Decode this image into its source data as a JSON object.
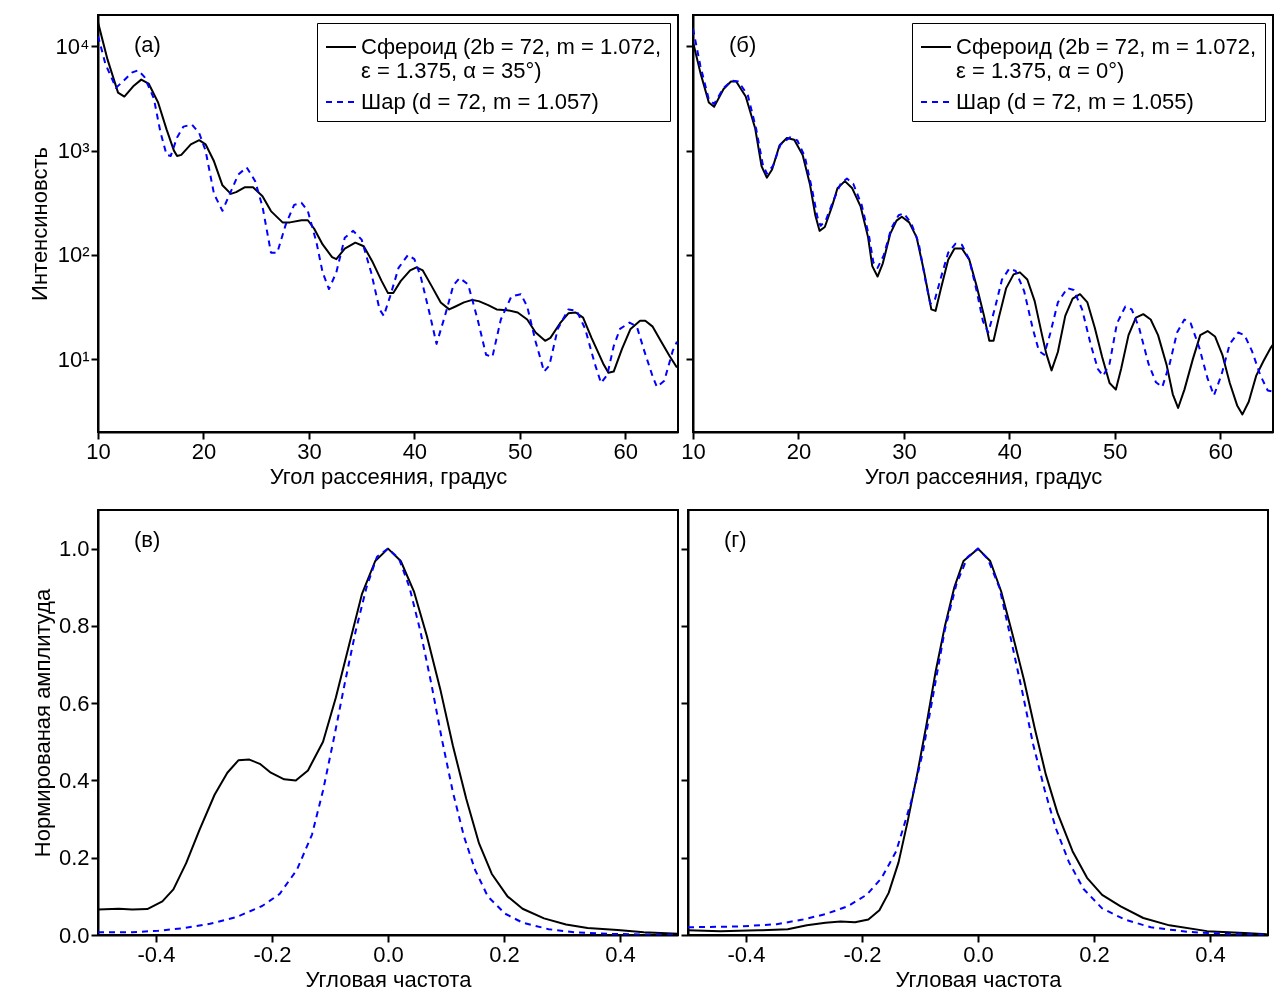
{
  "chart_data": [
    {
      "type": "line",
      "xlabel": "Угол рассеяния, градус",
      "ylabel": "Интенсиновсть",
      "annotations": [
        "(а)"
      ],
      "log": "y",
      "legend": "top right",
      "xlim": [
        10,
        65
      ],
      "xticks": [
        10,
        20,
        30,
        40,
        50,
        60
      ],
      "ylim": [
        2,
        20000
      ],
      "yticks": [
        {
          "value": 10,
          "label": "10¹"
        },
        {
          "value": 100,
          "label": "10²"
        },
        {
          "value": 1000,
          "label": "10³"
        },
        {
          "value": 10000,
          "label": "10⁴"
        }
      ],
      "series": [
        {
          "name": "Сфероид (2b = 72, m = 1.072, ε = 1.375, α = 35°)",
          "color": "#000000",
          "line_style": "solid",
          "x": [
            10,
            10.9,
            11.9,
            12.5,
            13.4,
            14.1,
            14.8,
            15.7,
            16.5,
            17.2,
            17.5,
            17.9,
            18.8,
            19.6,
            20.2,
            21,
            21.8,
            22.6,
            23.1,
            23.9,
            24.7,
            25.6,
            26.4,
            27.5,
            28.2,
            29.3,
            29.9,
            30.5,
            31.3,
            32.2,
            32.6,
            33.4,
            34.4,
            35.2,
            36,
            36.9,
            37.5,
            38,
            38.7,
            39.6,
            40.2,
            40.8,
            41.6,
            42.5,
            43.3,
            43.9,
            44.7,
            45.5,
            46.1,
            47,
            47.8,
            48.8,
            49.8,
            50.7,
            51.5,
            52.4,
            52.9,
            53.8,
            54.6,
            55.3,
            56,
            56.8,
            57.9,
            58.4,
            58.9,
            59.7,
            60.5,
            61.4,
            61.9,
            62.6,
            63.4,
            64.2,
            64.9
          ],
          "values": [
            17000,
            7500,
            3600,
            3300,
            4200,
            4800,
            4400,
            2900,
            1600,
            1000,
            890,
            910,
            1150,
            1260,
            1150,
            790,
            465,
            385,
            400,
            445,
            445,
            365,
            263,
            205,
            205,
            215,
            215,
            178,
            126,
            95,
            91,
            115,
            131,
            121,
            87,
            56,
            43,
            43,
            56,
            71,
            76,
            71,
            51,
            35,
            30,
            32,
            35,
            37,
            36,
            33,
            30,
            29.5,
            28,
            24,
            18,
            15,
            16,
            22,
            27.5,
            28,
            25,
            16,
            9.1,
            7.4,
            7.6,
            12.6,
            19.5,
            23.3,
            23.3,
            20.5,
            14.8,
            10.7,
            8.3
          ]
        },
        {
          "name": "Шар (d = 72, m = 1.057)",
          "color": "#0000ff",
          "line_style": "dashed",
          "x": [
            10,
            10.7,
            11.7,
            12.4,
            13.2,
            13.8,
            14.4,
            15.3,
            15.9,
            16.5,
            16.9,
            17.5,
            18.1,
            18.9,
            19.6,
            20.2,
            21,
            21.8,
            22.5,
            23.3,
            24.1,
            24.9,
            25.6,
            26.4,
            27,
            27.8,
            28.6,
            29.3,
            29.9,
            30.7,
            31.3,
            31.9,
            32.6,
            33.4,
            34.2,
            35,
            35.9,
            36.7,
            37.1,
            37.7,
            38.5,
            39.4,
            40,
            40.6,
            41.5,
            42.1,
            42.9,
            43.7,
            44.3,
            45.1,
            46,
            46.8,
            47.4,
            48.2,
            49.2,
            50.1,
            50.7,
            51.5,
            52.3,
            52.8,
            53.6,
            54.6,
            55.4,
            56.2,
            57.1,
            57.7,
            58.3,
            58.9,
            59.5,
            60.4,
            61.1,
            61.8,
            62.6,
            63,
            63.7,
            64.5,
            64.9
          ],
          "values": [
            12600,
            6800,
            4000,
            4650,
            5600,
            5900,
            5100,
            3150,
            1540,
            910,
            890,
            1340,
            1700,
            1780,
            1470,
            1000,
            385,
            265,
            385,
            590,
            690,
            510,
            290,
            105,
            105,
            195,
            302,
            316,
            263,
            134,
            68,
            47,
            68,
            146,
            170,
            140,
            68,
            30,
            26,
            40,
            75,
            100,
            91,
            62,
            26,
            14,
            26,
            51,
            60,
            52,
            24,
            11,
            10.5,
            24,
            40,
            42,
            32,
            14.7,
            7.6,
            8.7,
            19.5,
            30,
            29,
            19.5,
            9.1,
            5.9,
            7.1,
            13.3,
            19.5,
            22.4,
            20.5,
            12,
            6.8,
            5.4,
            6.2,
            12,
            14.7
          ]
        }
      ]
    },
    {
      "type": "line",
      "xlabel": "Угол рассеяния, градус",
      "annotations": [
        "(б)"
      ],
      "log": "y",
      "legend": "top right",
      "tick_labels": "x",
      "xlim": [
        10,
        65
      ],
      "xticks": [
        10,
        20,
        30,
        40,
        50,
        60
      ],
      "ylim": [
        2,
        20000
      ],
      "yticks": [
        {
          "value": 10,
          "label": null
        },
        {
          "value": 100,
          "label": null
        },
        {
          "value": 1000,
          "label": null
        },
        {
          "value": 10000,
          "label": null
        }
      ],
      "series": [
        {
          "name": "Сфероид (2b = 72, m = 1.072, ε = 1.375, α = 0°)",
          "color": "#000000",
          "line_style": "solid",
          "x": [
            10,
            10.7,
            11.5,
            12,
            12.9,
            13.6,
            14.1,
            15,
            15.9,
            16.5,
            17,
            17.5,
            18.2,
            18.9,
            19.6,
            20.4,
            21.1,
            21.6,
            22,
            22.5,
            23.2,
            23.7,
            24.4,
            25.1,
            25.9,
            26.6,
            27,
            27.5,
            28,
            28.7,
            29.3,
            29.8,
            30.5,
            31.2,
            31.9,
            32.6,
            33,
            33.5,
            34.2,
            34.8,
            35.5,
            36.2,
            36.9,
            37.6,
            38.1,
            38.5,
            39,
            39.7,
            40.4,
            41,
            41.7,
            42.4,
            43.1,
            43.5,
            44,
            44.6,
            45.3,
            46,
            46.7,
            47.4,
            48.1,
            48.8,
            49.5,
            50.1,
            50.6,
            51.3,
            52,
            52.7,
            53.4,
            54.1,
            54.9,
            55.5,
            56,
            56.6,
            57.4,
            58.1,
            58.8,
            59.5,
            60.2,
            60.9,
            61.6,
            62.1,
            62.7,
            63.4,
            64.1,
            64.8,
            65
          ],
          "values": [
            11000,
            5600,
            2900,
            2630,
            3900,
            4600,
            4600,
            3300,
            1630,
            710,
            550,
            660,
            1120,
            1320,
            1270,
            910,
            470,
            240,
            170,
            185,
            295,
            435,
            510,
            435,
            290,
            148,
            78,
            62,
            83,
            159,
            213,
            232,
            205,
            148,
            70,
            30,
            29,
            47,
            90,
            115,
            115,
            90,
            50,
            26,
            15,
            15,
            25,
            48,
            65,
            68,
            58,
            36,
            17,
            11.3,
            7.8,
            11.7,
            26,
            38,
            42,
            35,
            20,
            10.5,
            5.9,
            5.1,
            8.1,
            17,
            25,
            27,
            24,
            17,
            8.9,
            4.6,
            3.4,
            5.1,
            10,
            17,
            18.6,
            16.5,
            11,
            5.9,
            3.6,
            2.95,
            3.9,
            6.9,
            9.6,
            12.9,
            13.8
          ]
        },
        {
          "name": "Шар (d = 72, m = 1.055)",
          "color": "#0000ff",
          "line_style": "dashed",
          "x": [
            10,
            10.7,
            11.5,
            12,
            12.9,
            13.7,
            14.3,
            15.2,
            16,
            16.6,
            17,
            17.6,
            18.3,
            19.2,
            19.9,
            20.6,
            21.3,
            21.8,
            22.1,
            22.6,
            23.3,
            24,
            24.6,
            25.2,
            26,
            26.7,
            27.1,
            27.5,
            28.1,
            28.8,
            29.5,
            30,
            30.7,
            31.4,
            32,
            32.5,
            32.9,
            33.5,
            34.2,
            34.9,
            35.5,
            36.2,
            36.9,
            37.5,
            38,
            38.6,
            39.3,
            40,
            40.6,
            41.4,
            42.2,
            42.8,
            43.3,
            43.9,
            44.6,
            45.5,
            46.1,
            46.9,
            47.7,
            48.4,
            48.9,
            49.5,
            50.2,
            51,
            51.6,
            52.3,
            53.2,
            53.9,
            54.5,
            55.2,
            55.9,
            56.6,
            57.2,
            58,
            58.8,
            59.4,
            60.1,
            60.9,
            61.7,
            62.3,
            63,
            63.8,
            64.5,
            65
          ],
          "values": [
            14800,
            6500,
            3100,
            2800,
            4000,
            4700,
            4600,
            3400,
            1600,
            750,
            600,
            720,
            1150,
            1340,
            1250,
            880,
            420,
            230,
            190,
            215,
            330,
            480,
            540,
            480,
            300,
            150,
            85,
            75,
            100,
            180,
            240,
            250,
            200,
            130,
            60,
            34,
            36,
            60,
            105,
            128,
            125,
            90,
            45,
            23,
            18,
            30,
            58,
            74,
            70,
            45,
            20,
            12,
            11,
            18,
            35,
            48,
            46,
            30,
            14,
            8,
            6.9,
            9,
            22,
            32,
            30,
            20,
            9,
            6,
            5.4,
            9,
            18,
            24,
            22,
            13,
            6.5,
            4.5,
            7,
            14,
            18,
            17,
            12,
            7,
            5,
            4.9
          ]
        }
      ]
    },
    {
      "type": "line",
      "xlabel": "Угловая частота",
      "ylabel": "Нормированая амплитуда",
      "annotations": [
        "(в)"
      ],
      "xlim": [
        -0.5,
        0.5
      ],
      "xticks": [
        -0.4,
        -0.2,
        {
          "value": 0,
          "label": "0.0"
        },
        0.2,
        0.4
      ],
      "ylim": [
        0,
        1.1
      ],
      "yticks": [
        {
          "value": 0,
          "label": "0.0"
        },
        0.2,
        0.4,
        0.6,
        0.8,
        {
          "value": 1,
          "label": "1.0"
        }
      ],
      "series": [
        {
          "color": "#000000",
          "line_style": "solid",
          "x": [
            -0.5,
            -0.464,
            -0.441,
            -0.415,
            -0.389,
            -0.37,
            -0.348,
            -0.325,
            -0.299,
            -0.277,
            -0.258,
            -0.239,
            -0.221,
            -0.202,
            -0.179,
            -0.159,
            -0.138,
            -0.112,
            -0.09,
            -0.067,
            -0.045,
            -0.022,
            0,
            0.022,
            0.045,
            0.067,
            0.09,
            0.112,
            0.135,
            0.157,
            0.179,
            0.206,
            0.232,
            0.269,
            0.307,
            0.344,
            0.396,
            0.441,
            0.499
          ],
          "values": [
            0.066,
            0.068,
            0.066,
            0.067,
            0.087,
            0.118,
            0.186,
            0.272,
            0.363,
            0.42,
            0.452,
            0.454,
            0.443,
            0.42,
            0.403,
            0.4,
            0.426,
            0.5,
            0.614,
            0.751,
            0.882,
            0.968,
            1,
            0.968,
            0.888,
            0.774,
            0.637,
            0.489,
            0.352,
            0.237,
            0.158,
            0.1,
            0.068,
            0.043,
            0.027,
            0.018,
            0.013,
            0.007,
            0.003
          ]
        },
        {
          "color": "#0000ff",
          "line_style": "dashed",
          "x": [
            -0.5,
            -0.441,
            -0.396,
            -0.351,
            -0.307,
            -0.262,
            -0.217,
            -0.187,
            -0.157,
            -0.131,
            -0.112,
            -0.093,
            -0.075,
            -0.056,
            -0.037,
            -0.019,
            0,
            0.019,
            0.037,
            0.056,
            0.075,
            0.093,
            0.112,
            0.131,
            0.15,
            0.172,
            0.202,
            0.232,
            0.277,
            0.322,
            0.381,
            0.456,
            0.5
          ],
          "values": [
            0.007,
            0.007,
            0.011,
            0.018,
            0.029,
            0.046,
            0.075,
            0.106,
            0.169,
            0.26,
            0.374,
            0.511,
            0.648,
            0.785,
            0.9,
            0.979,
            1,
            0.974,
            0.9,
            0.785,
            0.648,
            0.506,
            0.369,
            0.255,
            0.169,
            0.1,
            0.055,
            0.032,
            0.015,
            0.007,
            0.003,
            0.001,
            0.001
          ]
        }
      ]
    },
    {
      "type": "line",
      "xlabel": "Угловая частота",
      "annotations": [
        "(г)"
      ],
      "tick_labels": "x",
      "xlim": [
        -0.5,
        0.5
      ],
      "xticks": [
        -0.4,
        -0.2,
        {
          "value": 0,
          "label": "0.0"
        },
        0.2,
        0.4
      ],
      "ylim": [
        0,
        1.1
      ],
      "yticks": [
        {
          "value": 0,
          "label": null
        },
        {
          "value": 0.2,
          "label": null
        },
        {
          "value": 0.4,
          "label": null
        },
        {
          "value": 0.6,
          "label": null
        },
        {
          "value": 0.8,
          "label": null
        },
        {
          "value": 1,
          "label": null
        }
      ],
      "series": [
        {
          "color": "#000000",
          "line_style": "solid",
          "x": [
            -0.5,
            -0.444,
            -0.379,
            -0.328,
            -0.295,
            -0.263,
            -0.237,
            -0.212,
            -0.189,
            -0.17,
            -0.154,
            -0.137,
            -0.121,
            -0.105,
            -0.089,
            -0.073,
            -0.057,
            -0.041,
            -0.025,
            0,
            0.021,
            0.04,
            0.059,
            0.079,
            0.098,
            0.117,
            0.137,
            0.163,
            0.188,
            0.214,
            0.246,
            0.285,
            0.33,
            0.395,
            0.459,
            0.498
          ],
          "values": [
            0.012,
            0.01,
            0.012,
            0.015,
            0.025,
            0.032,
            0.035,
            0.033,
            0.04,
            0.064,
            0.109,
            0.188,
            0.296,
            0.415,
            0.543,
            0.682,
            0.8,
            0.899,
            0.968,
            1,
            0.968,
            0.889,
            0.781,
            0.662,
            0.534,
            0.415,
            0.316,
            0.217,
            0.148,
            0.104,
            0.074,
            0.044,
            0.025,
            0.01,
            0.005,
            0.002
          ]
        },
        {
          "color": "#0000ff",
          "line_style": "dashed",
          "x": [
            -0.5,
            -0.412,
            -0.347,
            -0.302,
            -0.263,
            -0.225,
            -0.192,
            -0.166,
            -0.141,
            -0.115,
            -0.095,
            -0.076,
            -0.057,
            -0.037,
            -0.018,
            0,
            0.017,
            0.037,
            0.056,
            0.076,
            0.095,
            0.115,
            0.134,
            0.157,
            0.182,
            0.214,
            0.253,
            0.298,
            0.363,
            0.427,
            0.498
          ],
          "values": [
            0.02,
            0.022,
            0.028,
            0.04,
            0.054,
            0.074,
            0.104,
            0.148,
            0.217,
            0.346,
            0.474,
            0.632,
            0.791,
            0.909,
            0.978,
            1,
            0.973,
            0.899,
            0.771,
            0.632,
            0.494,
            0.375,
            0.277,
            0.188,
            0.119,
            0.069,
            0.04,
            0.02,
            0.008,
            0.003,
            0.001
          ]
        }
      ]
    }
  ]
}
